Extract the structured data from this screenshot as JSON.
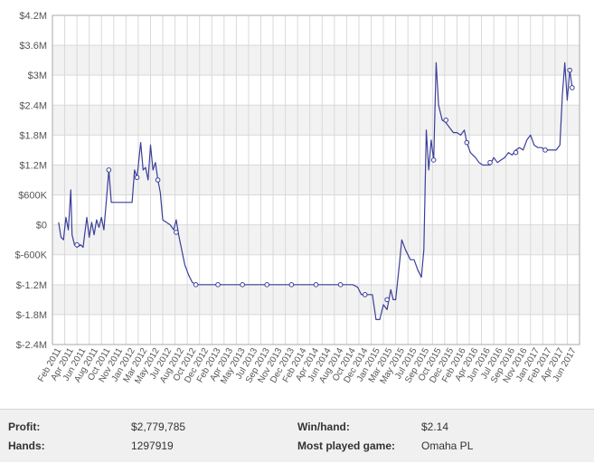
{
  "chart_data": {
    "type": "line",
    "x_labels": [
      "Feb 2011",
      "Apr 2011",
      "Jun 2011",
      "Aug 2011",
      "Oct 2011",
      "Nov 2011",
      "Jan 2012",
      "Mar 2012",
      "May 2012",
      "Jul 2012",
      "Aug 2012",
      "Oct 2012",
      "Dec 2012",
      "Feb 2013",
      "Apr 2013",
      "May 2013",
      "Jul 2013",
      "Sep 2013",
      "Nov 2013",
      "Dec 2013",
      "Feb 2014",
      "Apr 2014",
      "Jun 2014",
      "Aug 2014",
      "Oct 2014",
      "Dec 2014",
      "Jan 2015",
      "Mar 2015",
      "May 2015",
      "Jul 2015",
      "Sep 2015",
      "Oct 2015",
      "Dec 2015",
      "Feb 2016",
      "Apr 2016",
      "Jun 2016",
      "Jul 2016",
      "Sep 2016",
      "Nov 2016",
      "Jan 2017",
      "Feb 2017",
      "Apr 2017",
      "Jun 2017"
    ],
    "y_ticks": [
      "$4.2M",
      "$3.6M",
      "$3M",
      "$2.4M",
      "$1.8M",
      "$1.2M",
      "$600K",
      "$0",
      "$-600K",
      "$-1.2M",
      "$-1.8M",
      "$-2.4M"
    ],
    "ylim": [
      -2400000,
      4200000
    ],
    "grid": true,
    "line_color": "#3b3f99",
    "series": [
      {
        "points": [
          [
            0.0,
            50000
          ],
          [
            0.2,
            -250000
          ],
          [
            0.4,
            -300000
          ],
          [
            0.6,
            150000
          ],
          [
            0.8,
            -100000
          ],
          [
            1.0,
            700000
          ],
          [
            1.1,
            -200000
          ],
          [
            1.3,
            -400000
          ],
          [
            1.5,
            -450000
          ],
          [
            1.8,
            -400000
          ],
          [
            2.0,
            -450000
          ],
          [
            2.3,
            150000
          ],
          [
            2.5,
            -250000
          ],
          [
            2.7,
            50000
          ],
          [
            2.9,
            -200000
          ],
          [
            3.1,
            100000
          ],
          [
            3.3,
            -50000
          ],
          [
            3.5,
            150000
          ],
          [
            3.7,
            -100000
          ],
          [
            3.9,
            500000
          ],
          [
            4.1,
            1100000
          ],
          [
            4.3,
            450000
          ],
          [
            4.6,
            450000
          ],
          [
            5.0,
            450000
          ],
          [
            5.4,
            450000
          ],
          [
            5.8,
            450000
          ],
          [
            6.0,
            450000
          ],
          [
            6.2,
            1100000
          ],
          [
            6.4,
            950000
          ],
          [
            6.7,
            1650000
          ],
          [
            6.9,
            1100000
          ],
          [
            7.1,
            1150000
          ],
          [
            7.3,
            900000
          ],
          [
            7.5,
            1600000
          ],
          [
            7.7,
            1100000
          ],
          [
            7.9,
            1250000
          ],
          [
            8.1,
            900000
          ],
          [
            8.3,
            650000
          ],
          [
            8.5,
            100000
          ],
          [
            8.8,
            50000
          ],
          [
            9.1,
            0
          ],
          [
            9.4,
            -100000
          ],
          [
            9.6,
            100000
          ],
          [
            9.8,
            -200000
          ],
          [
            10.0,
            -450000
          ],
          [
            10.3,
            -800000
          ],
          [
            10.6,
            -1000000
          ],
          [
            10.9,
            -1150000
          ],
          [
            11.2,
            -1200000
          ],
          [
            12.0,
            -1200000
          ],
          [
            13.0,
            -1200000
          ],
          [
            14.0,
            -1200000
          ],
          [
            15.0,
            -1200000
          ],
          [
            16.0,
            -1200000
          ],
          [
            17.0,
            -1200000
          ],
          [
            18.0,
            -1200000
          ],
          [
            19.0,
            -1200000
          ],
          [
            20.0,
            -1200000
          ],
          [
            21.0,
            -1200000
          ],
          [
            22.0,
            -1200000
          ],
          [
            23.0,
            -1200000
          ],
          [
            24.0,
            -1200000
          ],
          [
            24.4,
            -1250000
          ],
          [
            24.7,
            -1400000
          ],
          [
            25.0,
            -1400000
          ],
          [
            25.3,
            -1400000
          ],
          [
            25.6,
            -1400000
          ],
          [
            25.9,
            -1900000
          ],
          [
            26.2,
            -1900000
          ],
          [
            26.5,
            -1600000
          ],
          [
            26.8,
            -1700000
          ],
          [
            27.1,
            -1300000
          ],
          [
            27.3,
            -1500000
          ],
          [
            27.5,
            -1500000
          ],
          [
            27.8,
            -800000
          ],
          [
            28.0,
            -300000
          ],
          [
            28.3,
            -500000
          ],
          [
            28.7,
            -700000
          ],
          [
            29.0,
            -700000
          ],
          [
            29.3,
            -900000
          ],
          [
            29.6,
            -1050000
          ],
          [
            29.8,
            -500000
          ],
          [
            30.0,
            1900000
          ],
          [
            30.2,
            1100000
          ],
          [
            30.4,
            1700000
          ],
          [
            30.6,
            1300000
          ],
          [
            30.8,
            3250000
          ],
          [
            31.0,
            2400000
          ],
          [
            31.3,
            2100000
          ],
          [
            31.6,
            2050000
          ],
          [
            31.9,
            1950000
          ],
          [
            32.2,
            1850000
          ],
          [
            32.5,
            1850000
          ],
          [
            32.8,
            1800000
          ],
          [
            33.1,
            1900000
          ],
          [
            33.3,
            1650000
          ],
          [
            33.6,
            1450000
          ],
          [
            34.0,
            1350000
          ],
          [
            34.3,
            1250000
          ],
          [
            34.6,
            1200000
          ],
          [
            34.9,
            1200000
          ],
          [
            35.2,
            1200000
          ],
          [
            35.5,
            1350000
          ],
          [
            35.8,
            1250000
          ],
          [
            36.1,
            1300000
          ],
          [
            36.4,
            1350000
          ],
          [
            36.7,
            1450000
          ],
          [
            37.0,
            1400000
          ],
          [
            37.3,
            1500000
          ],
          [
            37.6,
            1550000
          ],
          [
            37.9,
            1500000
          ],
          [
            38.2,
            1700000
          ],
          [
            38.5,
            1800000
          ],
          [
            38.8,
            1600000
          ],
          [
            39.1,
            1550000
          ],
          [
            39.4,
            1550000
          ],
          [
            39.7,
            1500000
          ],
          [
            40.0,
            1500000
          ],
          [
            40.3,
            1500000
          ],
          [
            40.6,
            1500000
          ],
          [
            40.9,
            1600000
          ],
          [
            41.1,
            2600000
          ],
          [
            41.3,
            3250000
          ],
          [
            41.5,
            2500000
          ],
          [
            41.7,
            3100000
          ],
          [
            41.9,
            2750000
          ]
        ],
        "markers": [
          [
            1.5,
            -400000
          ],
          [
            4.1,
            1100000
          ],
          [
            6.4,
            950000
          ],
          [
            8.1,
            900000
          ],
          [
            9.6,
            -150000
          ],
          [
            11.2,
            -1200000
          ],
          [
            13.0,
            -1200000
          ],
          [
            15.0,
            -1200000
          ],
          [
            17.0,
            -1200000
          ],
          [
            19.0,
            -1200000
          ],
          [
            21.0,
            -1200000
          ],
          [
            23.0,
            -1200000
          ],
          [
            25.0,
            -1400000
          ],
          [
            26.8,
            -1500000
          ],
          [
            30.6,
            1300000
          ],
          [
            31.6,
            2100000
          ],
          [
            33.3,
            1650000
          ],
          [
            35.2,
            1250000
          ],
          [
            37.3,
            1450000
          ],
          [
            39.7,
            1500000
          ],
          [
            41.7,
            3100000
          ],
          [
            41.9,
            2750000
          ]
        ]
      }
    ]
  },
  "stats": {
    "profit_label": "Profit:",
    "profit_value": "$2,779,785",
    "hands_label": "Hands:",
    "hands_value": "1297919",
    "winhand_label": "Win/hand:",
    "winhand_value": "$2.14",
    "game_label": "Most played game:",
    "game_value": "Omaha PL"
  }
}
